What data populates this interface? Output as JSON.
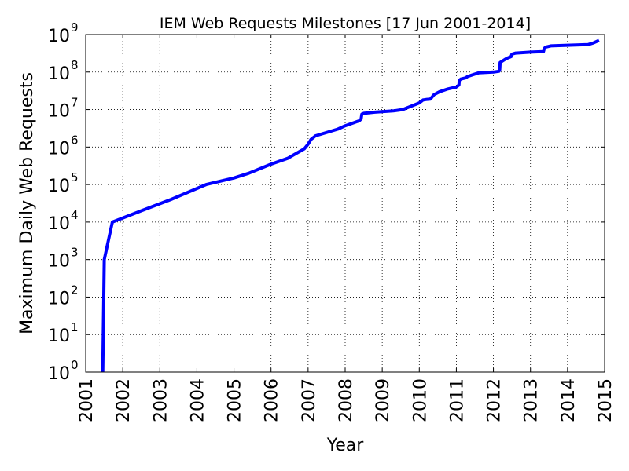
{
  "chart_data": {
    "type": "line",
    "title": "IEM Web Requests Milestones [17 Jun 2001-2014]",
    "xlabel": "Year",
    "ylabel": "Maximum Daily Web Requests",
    "xlim": [
      2001,
      2015
    ],
    "ylim": [
      1,
      1000000000
    ],
    "yscale": "log",
    "grid": true,
    "x_ticks": [
      "2001",
      "2002",
      "2003",
      "2004",
      "2005",
      "2006",
      "2007",
      "2008",
      "2009",
      "2010",
      "2011",
      "2012",
      "2013",
      "2014",
      "2015"
    ],
    "y_ticks": [
      {
        "base": "10",
        "exp": "0"
      },
      {
        "base": "10",
        "exp": "1"
      },
      {
        "base": "10",
        "exp": "2"
      },
      {
        "base": "10",
        "exp": "3"
      },
      {
        "base": "10",
        "exp": "4"
      },
      {
        "base": "10",
        "exp": "5"
      },
      {
        "base": "10",
        "exp": "6"
      },
      {
        "base": "10",
        "exp": "7"
      },
      {
        "base": "10",
        "exp": "8"
      },
      {
        "base": "10",
        "exp": "9"
      }
    ],
    "series": [
      {
        "color": "#0000ff",
        "x": [
          2001.46,
          2001.5,
          2001.72,
          2002.5,
          2003.3,
          2004.25,
          2005.0,
          2005.4,
          2006.0,
          2006.45,
          2006.9,
          2007.0,
          2007.08,
          2007.2,
          2007.8,
          2008.0,
          2008.38,
          2008.43,
          2008.45,
          2008.5,
          2008.8,
          2009.3,
          2009.55,
          2010.0,
          2010.1,
          2010.18,
          2010.3,
          2010.4,
          2010.55,
          2010.75,
          2011.0,
          2011.07,
          2011.08,
          2011.12,
          2011.25,
          2011.3,
          2011.45,
          2011.6,
          2012.0,
          2012.15,
          2012.17,
          2012.18,
          2012.35,
          2012.48,
          2012.5,
          2012.6,
          2013.0,
          2013.35,
          2013.37,
          2013.4,
          2013.55,
          2014.0,
          2014.55,
          2014.7,
          2014.85
        ],
        "y": [
          1,
          1000,
          10000,
          20000,
          40000,
          100000,
          150000,
          200000,
          350000,
          500000,
          900000,
          1200000,
          1600000,
          2000000,
          3000000,
          3700000,
          5000000,
          5600000,
          7500000,
          7900000,
          8500000,
          9200000,
          10000000,
          15000000,
          18000000,
          18500000,
          19000000,
          25000000,
          30000000,
          35000000,
          40000000,
          45000000,
          60000000,
          65000000,
          70000000,
          76000000,
          85000000,
          95000000,
          100000000,
          105000000,
          115000000,
          180000000,
          230000000,
          260000000,
          300000000,
          320000000,
          340000000,
          350000000,
          420000000,
          460000000,
          500000000,
          520000000,
          540000000,
          600000000,
          700000000
        ]
      }
    ]
  }
}
